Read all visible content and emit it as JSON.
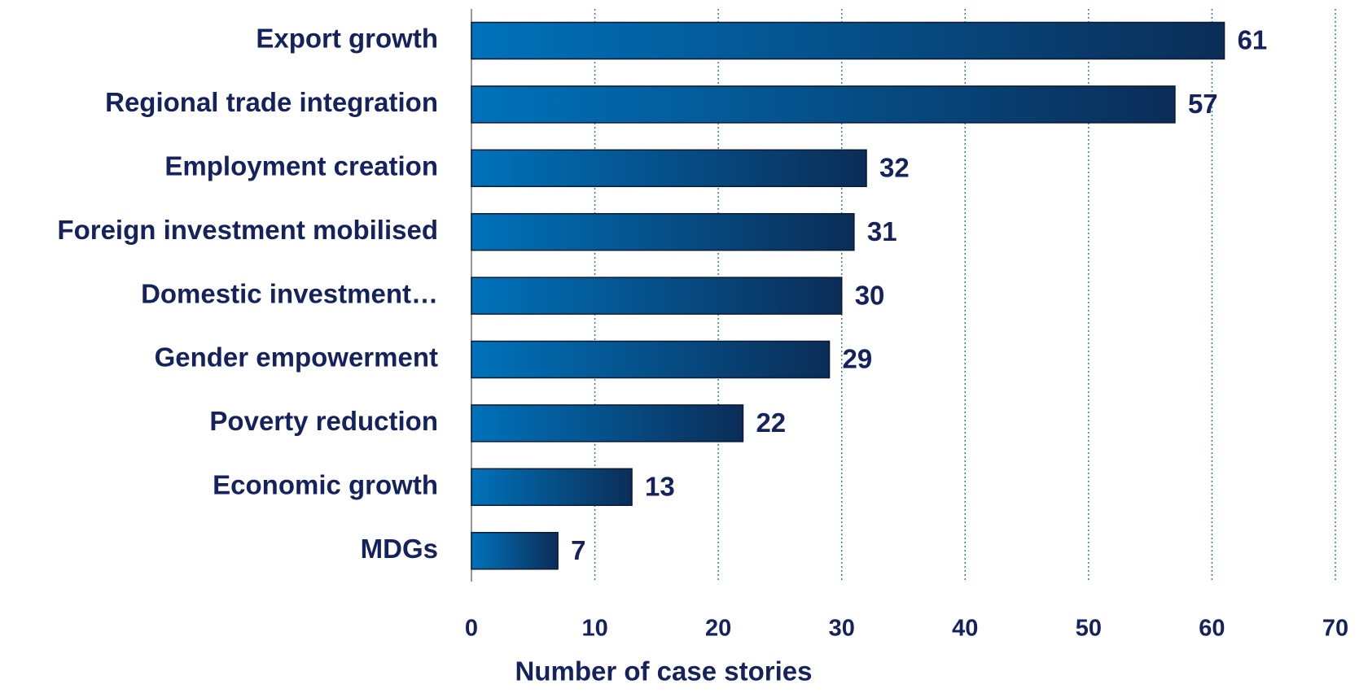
{
  "chart_data": {
    "type": "hbar",
    "x_label": "Number of case stories",
    "categories": [
      "Export growth",
      "Regional trade integration",
      "Employment creation",
      "Foreign investment mobilised",
      "Domestic investment…",
      "Gender empowerment",
      "Poverty reduction",
      "Economic growth",
      "MDGs"
    ],
    "values": [
      61,
      57,
      32,
      31,
      30,
      29,
      22,
      13,
      7
    ],
    "color_start": "#0072ba",
    "color_end": "#0b2d57",
    "xlim": [
      0,
      70
    ],
    "xticks": [
      0,
      10,
      20,
      30,
      40,
      50,
      60,
      70
    ],
    "grid": true
  }
}
